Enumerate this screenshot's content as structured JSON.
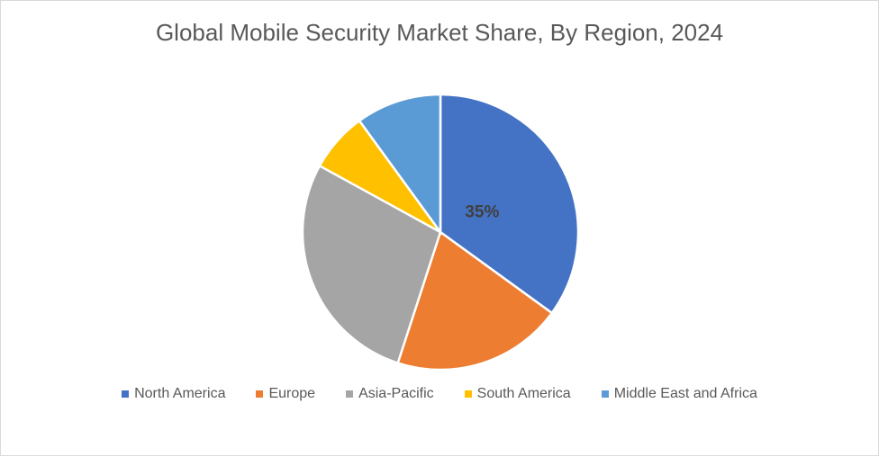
{
  "chart_data": {
    "type": "pie",
    "title": "Global Mobile Security Market Share, By Region, 2024",
    "categories": [
      "North America",
      "Europe",
      "Asia-Pacific",
      "South America",
      "Middle East and Africa"
    ],
    "values": [
      35,
      20,
      28,
      7,
      10
    ],
    "colors": [
      "#4472c4",
      "#ed7d31",
      "#a5a5a5",
      "#ffc000",
      "#5b9bd5"
    ],
    "data_labels": [
      "35%",
      "",
      "",
      "",
      ""
    ],
    "legend_position": "bottom"
  }
}
